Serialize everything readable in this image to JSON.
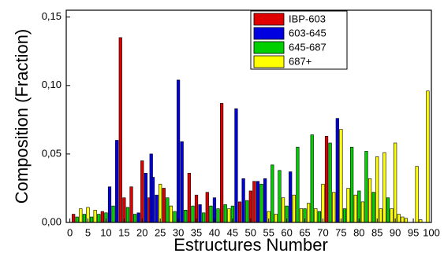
{
  "chart_data": {
    "type": "bar",
    "xlabel": "Estructures Number",
    "ylabel": "Composition (Fraction)",
    "xlim": [
      -1,
      100
    ],
    "ylim": [
      0,
      0.155
    ],
    "xticks": [
      0,
      5,
      10,
      15,
      20,
      25,
      30,
      35,
      40,
      45,
      50,
      55,
      60,
      65,
      70,
      75,
      80,
      85,
      90,
      95,
      100
    ],
    "yticks": [
      {
        "value": 0,
        "label": "0,00"
      },
      {
        "value": 0.05,
        "label": "0,05"
      },
      {
        "value": 0.1,
        "label": "0,10"
      },
      {
        "value": 0.15,
        "label": "0,15"
      }
    ],
    "legend": "upper right",
    "series": [
      {
        "name": "IBP-603",
        "color": "#e00000",
        "x": [
          1,
          9,
          14,
          15,
          17,
          20,
          22,
          26,
          33,
          35,
          38,
          42,
          47,
          50,
          51,
          71
        ],
        "values": [
          0.006,
          0.008,
          0.135,
          0.018,
          0.026,
          0.045,
          0.018,
          0.025,
          0.036,
          0.02,
          0.022,
          0.087,
          0.015,
          0.023,
          0.03,
          0.063
        ]
      },
      {
        "name": "603-645",
        "color": "#0000e0",
        "x": [
          11,
          13,
          19,
          21,
          22.5,
          23,
          24,
          30,
          31,
          36,
          40,
          46,
          48,
          52,
          54,
          61,
          74
        ],
        "values": [
          0.026,
          0.06,
          0.007,
          0.036,
          0.05,
          0.033,
          0.02,
          0.104,
          0.059,
          0.013,
          0.018,
          0.083,
          0.032,
          0.03,
          0.032,
          0.037,
          0.076
        ]
      },
      {
        "name": "645-687",
        "color": "#00d000",
        "x": [
          2,
          4,
          6,
          8,
          10,
          12,
          16,
          18,
          27,
          29,
          32,
          34,
          37,
          39,
          41,
          43,
          45,
          49,
          53,
          56,
          58,
          60,
          63,
          65,
          67,
          69,
          72,
          76,
          78,
          80,
          82,
          84,
          88
        ],
        "values": [
          0.004,
          0.006,
          0.004,
          0.006,
          0.007,
          0.012,
          0.011,
          0.006,
          0.018,
          0.008,
          0.009,
          0.012,
          0.007,
          0.012,
          0.01,
          0.013,
          0.012,
          0.016,
          0.028,
          0.042,
          0.038,
          0.012,
          0.055,
          0.01,
          0.064,
          0.008,
          0.058,
          0.01,
          0.055,
          0.023,
          0.052,
          0.022,
          0.018
        ]
      },
      {
        "name": "687+",
        "color": "#ffff00",
        "x": [
          3,
          5,
          7,
          25,
          28,
          44,
          55,
          57,
          59,
          62,
          64,
          66,
          68,
          70,
          73,
          75,
          77,
          79,
          81,
          83,
          85,
          86,
          87,
          89,
          90,
          91,
          92,
          93,
          96,
          97,
          99
        ],
        "values": [
          0.01,
          0.011,
          0.009,
          0.028,
          0.012,
          0.01,
          0.008,
          0.006,
          0.018,
          0.02,
          0.01,
          0.014,
          0.01,
          0.028,
          0.022,
          0.068,
          0.025,
          0.02,
          0.015,
          0.032,
          0.048,
          0.01,
          0.051,
          0.01,
          0.058,
          0.006,
          0.004,
          0.003,
          0.041,
          0.002,
          0.096
        ]
      }
    ]
  }
}
